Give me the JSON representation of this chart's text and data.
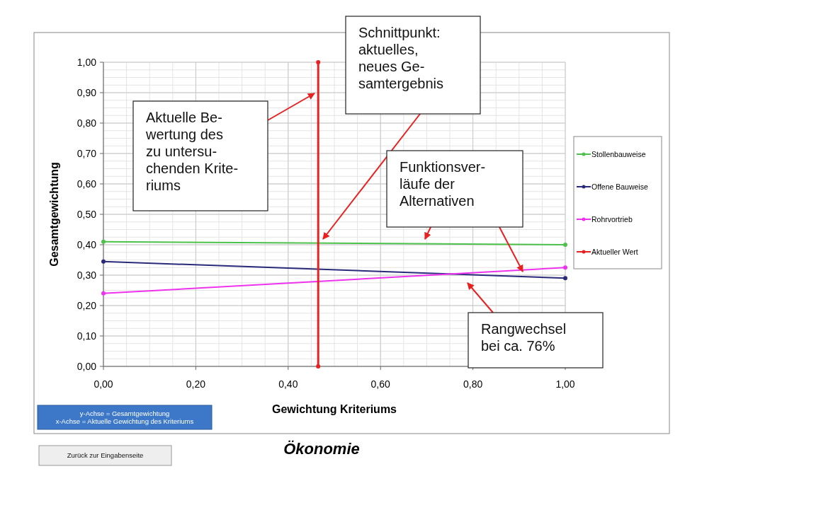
{
  "chart_data": {
    "type": "line",
    "title": "Ökonomie",
    "xlabel": "Gewichtung Kriteriums",
    "ylabel": "Gesamtgewichtung",
    "xlim": [
      0,
      1
    ],
    "ylim": [
      0,
      1
    ],
    "xticks": [
      {
        "value": 0,
        "label": "0,00"
      },
      {
        "value": 0.2,
        "label": "0,20"
      },
      {
        "value": 0.4,
        "label": "0,40"
      },
      {
        "value": 0.6,
        "label": "0,60"
      },
      {
        "value": 0.8,
        "label": "0,80"
      },
      {
        "value": 1,
        "label": "1,00"
      }
    ],
    "yticks": [
      {
        "value": 0,
        "label": "0,00"
      },
      {
        "value": 0.1,
        "label": "0,10"
      },
      {
        "value": 0.2,
        "label": "0,20"
      },
      {
        "value": 0.3,
        "label": "0,30"
      },
      {
        "value": 0.4,
        "label": "0,40"
      },
      {
        "value": 0.5,
        "label": "0,50"
      },
      {
        "value": 0.6,
        "label": "0,60"
      },
      {
        "value": 0.7,
        "label": "0,70"
      },
      {
        "value": 0.8,
        "label": "0,80"
      },
      {
        "value": 0.9,
        "label": "0,90"
      },
      {
        "value": 1,
        "label": "1,00"
      }
    ],
    "x": [
      0,
      1
    ],
    "series": [
      {
        "name": "Stollenbauweise",
        "color": "#4cc24c",
        "values": [
          0.41,
          0.4
        ]
      },
      {
        "name": "Offene Bauweise",
        "color": "#2a2a7a",
        "values": [
          0.345,
          0.29
        ]
      },
      {
        "name": "Rohrvortrieb",
        "color": "#ee33ee",
        "values": [
          0.24,
          0.325
        ]
      },
      {
        "name": "Aktueller Wert",
        "color": "#e82020",
        "x": [
          0.465,
          0.465
        ],
        "values": [
          0,
          1
        ]
      }
    ],
    "grid": true,
    "legend": "right",
    "marker": "circle",
    "annotations": [
      "Aktuelle Be-\nwertung des\nzu untersu-\nchenden Krite-\nriums",
      "Schnittpunkt:\naktuelles,\nneues Ge-\nsamtergebnis",
      "Funktionsver-\nläufe der\nAlternativen",
      "Rangwechsel\nbei ca. 76%",
      "y-Achse = Gesamtgewichtung\nx-Achse = Aktuelle Gewichtung des Kriteriums",
      "Zurück zur Eingabenseite"
    ]
  }
}
